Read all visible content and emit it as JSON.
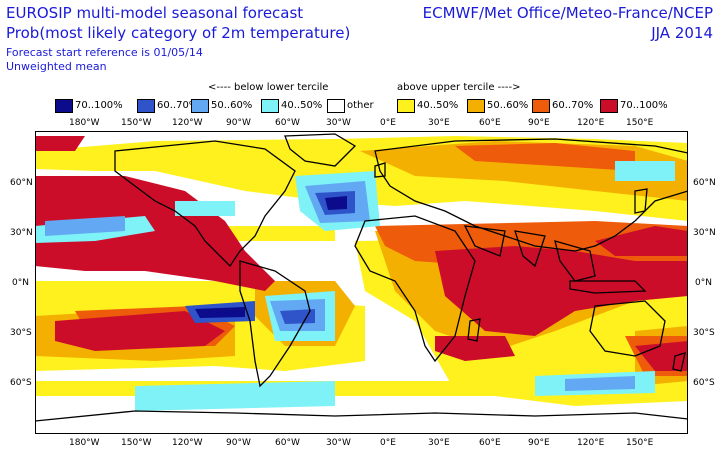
{
  "header": {
    "title_line1": "EUROSIP multi-model seasonal forecast",
    "title_line2": "Prob(most likely category of 2m temperature)",
    "forecast_ref": "Forecast start reference is 01/05/14",
    "mean_type": "Unweighted mean",
    "agencies": "ECMWF/Met Office/Meteo-France/NCEP",
    "season": "JJA 2014"
  },
  "legend": {
    "below_label": "<---- below lower tercile",
    "above_label": "above upper tercile ---->",
    "items": [
      {
        "label": "70..100%",
        "color": "#0b0b8c"
      },
      {
        "label": "60..70%",
        "color": "#2f54c9"
      },
      {
        "label": "50..60%",
        "color": "#63a8f3"
      },
      {
        "label": "40..50%",
        "color": "#7ff2f8"
      },
      {
        "label": "other",
        "color": "#ffffff"
      },
      {
        "label": "40..50%",
        "color": "#fff11d"
      },
      {
        "label": "50..60%",
        "color": "#f4b000"
      },
      {
        "label": "60..70%",
        "color": "#ee5b0a"
      },
      {
        "label": "70..100%",
        "color": "#cc0d2a"
      }
    ]
  },
  "map": {
    "lon_labels": [
      "180°W",
      "150°W",
      "120°W",
      "90°W",
      "60°W",
      "30°W",
      "0°E",
      "30°E",
      "60°E",
      "90°E",
      "120°E",
      "150°E"
    ],
    "lat_labels": [
      "60°N",
      "30°N",
      "0°N",
      "30°S",
      "60°S"
    ],
    "colors": {
      "coast": "#000000",
      "low_70": "#0b0b8c",
      "low_60": "#2f54c9",
      "low_50": "#63a8f3",
      "low_40": "#7ff2f8",
      "high_40": "#fff11d",
      "high_50": "#f4b000",
      "high_60": "#ee5b0a",
      "high_70": "#cc0d2a"
    }
  }
}
